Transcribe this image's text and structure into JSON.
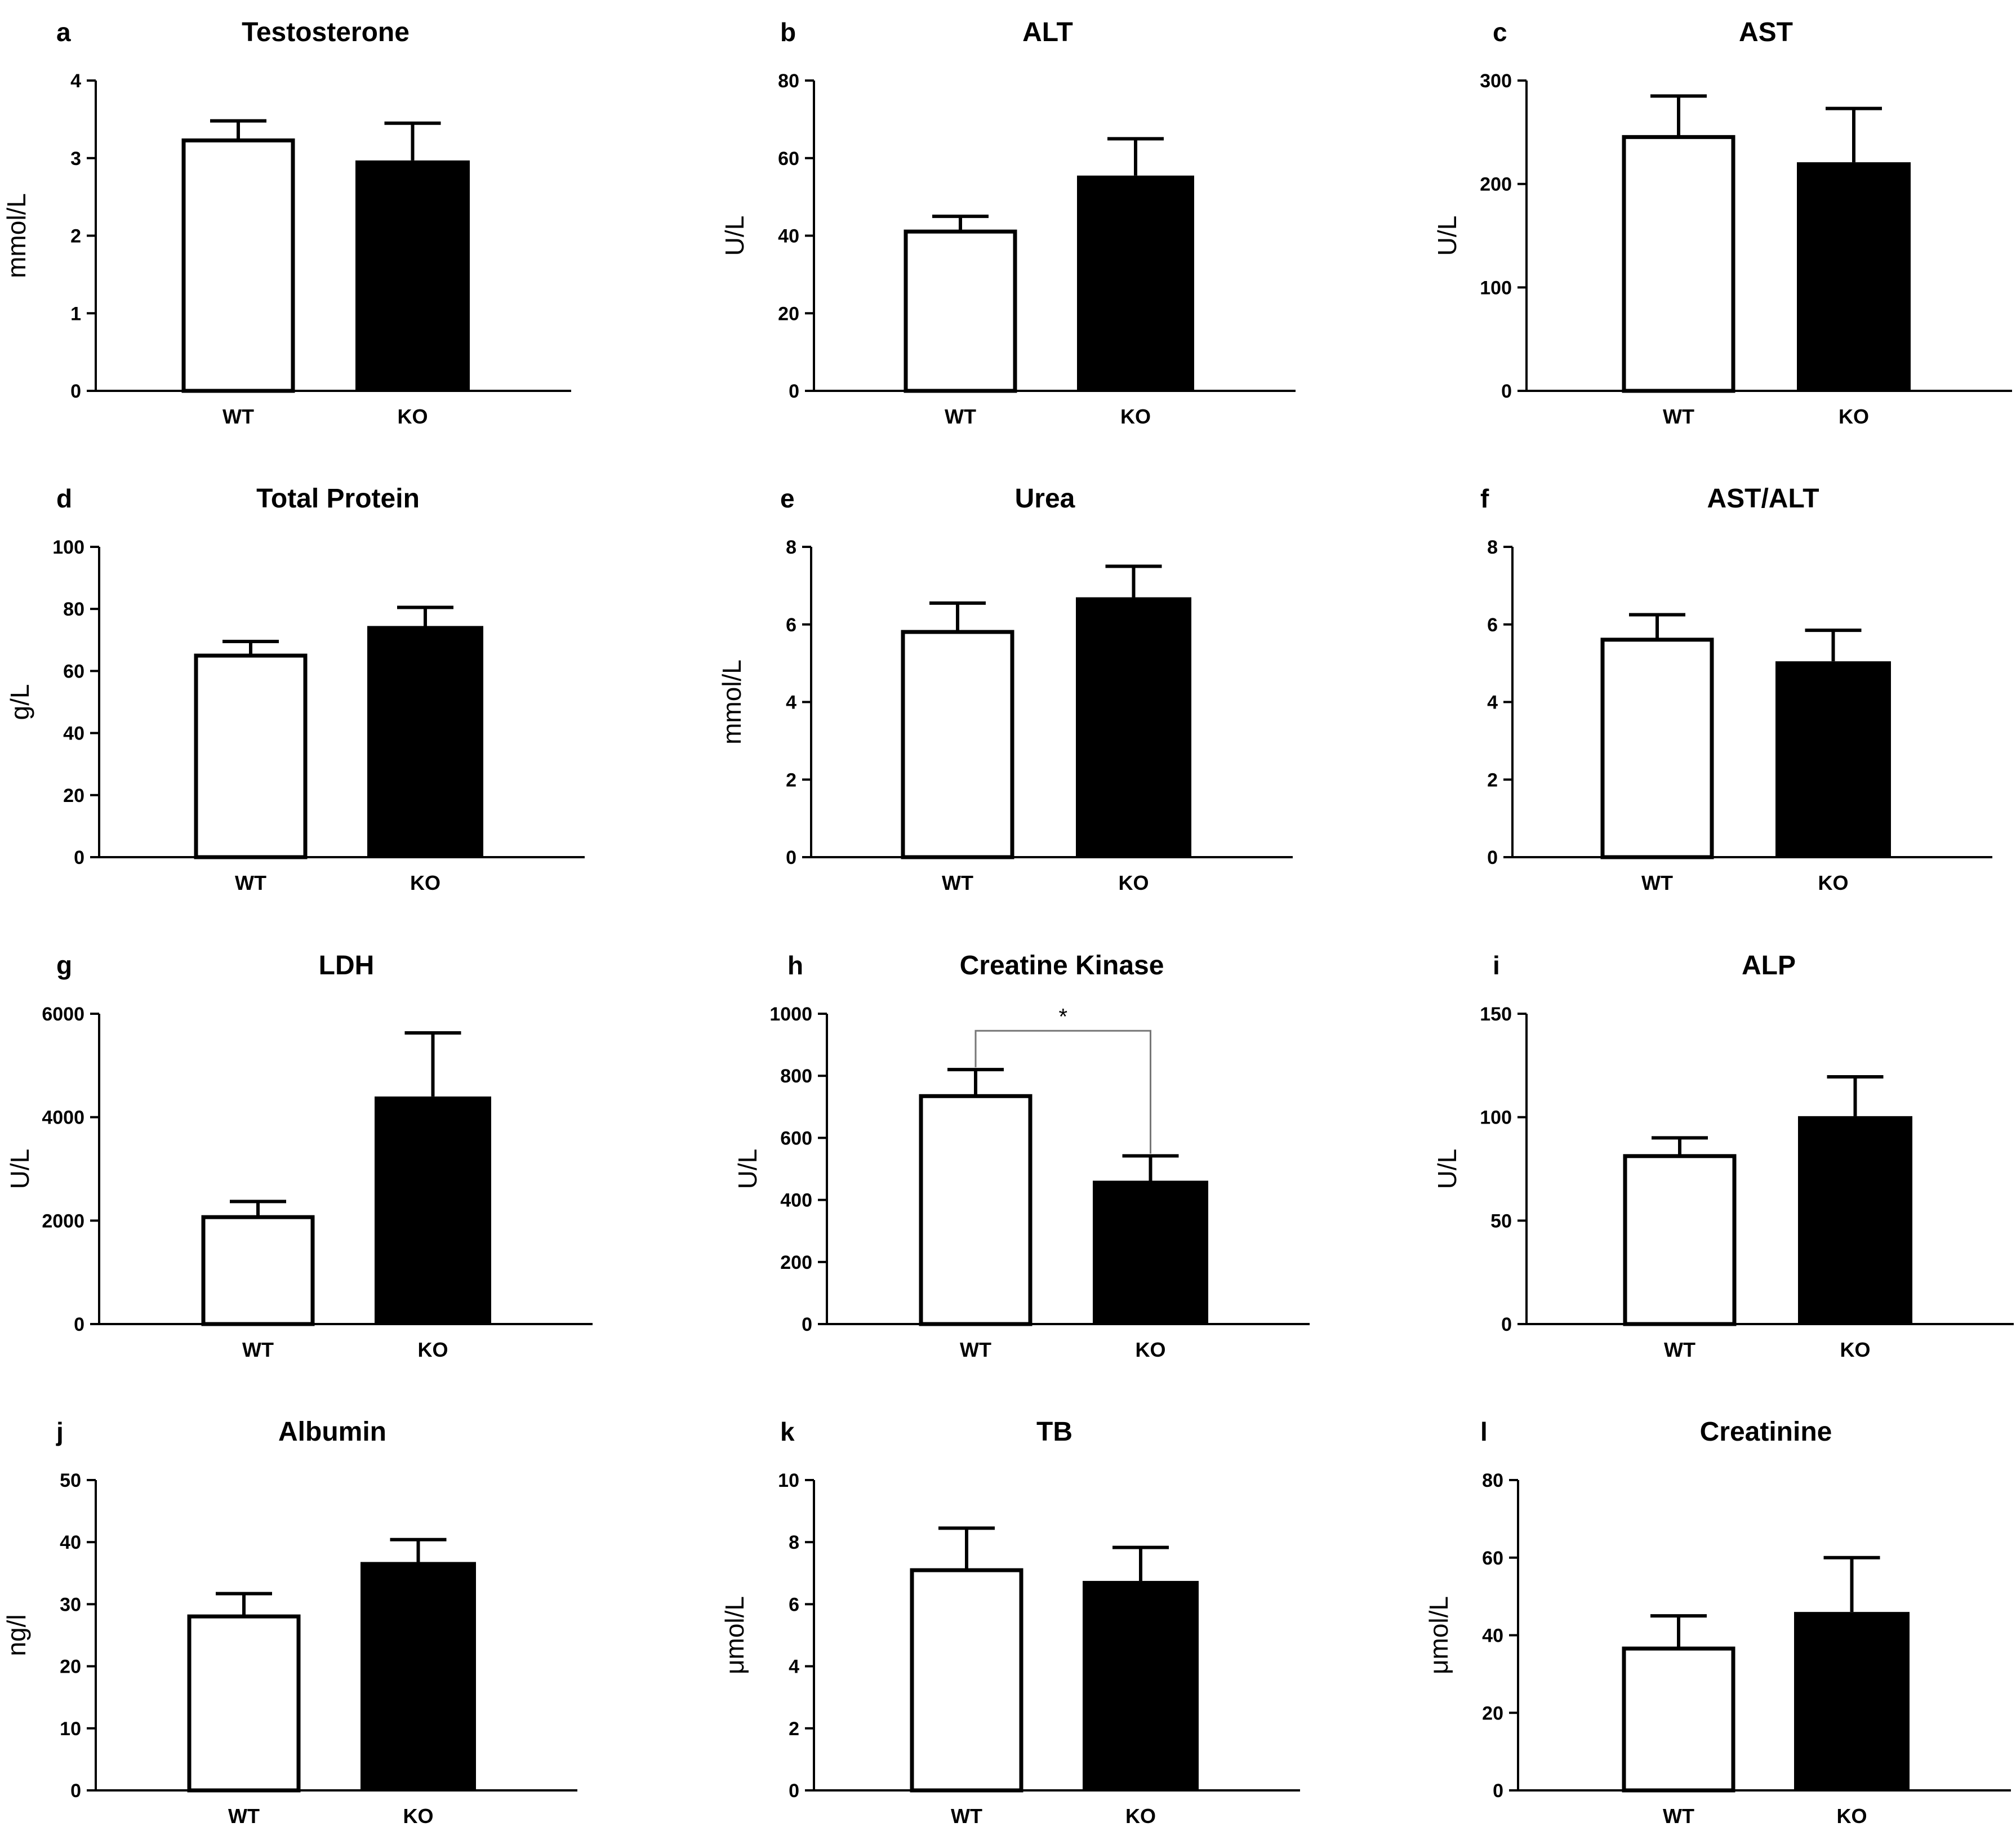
{
  "chart_data": [
    {
      "letter": "a",
      "type": "bar",
      "title": "Testosterone",
      "ylabel": "mmol/L",
      "ylim": [
        0,
        4
      ],
      "ticks": [
        0,
        1,
        2,
        3,
        4
      ],
      "categories": [
        "WT",
        "KO"
      ],
      "values": [
        3.25,
        2.97
      ],
      "errors": [
        0.23,
        0.48
      ],
      "fills": [
        "#ffffff",
        "#000000"
      ]
    },
    {
      "letter": "b",
      "type": "bar",
      "title": "ALT",
      "ylabel": "U/L",
      "ylim": [
        0,
        80
      ],
      "ticks": [
        0,
        20,
        40,
        60,
        80
      ],
      "categories": [
        "WT",
        "KO"
      ],
      "values": [
        41.5,
        55.5
      ],
      "errors": [
        3.5,
        9.5
      ],
      "fills": [
        "#ffffff",
        "#000000"
      ]
    },
    {
      "letter": "c",
      "type": "bar",
      "title": "AST",
      "ylabel": "U/L",
      "ylim": [
        0,
        300
      ],
      "ticks": [
        0,
        100,
        200,
        300
      ],
      "categories": [
        "WT",
        "KO"
      ],
      "values": [
        247,
        221
      ],
      "errors": [
        38,
        52
      ],
      "fills": [
        "#ffffff",
        "#000000"
      ]
    },
    {
      "letter": "d",
      "type": "bar",
      "title": "Total Protein",
      "ylabel": "g/L",
      "ylim": [
        0,
        100
      ],
      "ticks": [
        0,
        20,
        40,
        60,
        80,
        100
      ],
      "categories": [
        "WT",
        "KO"
      ],
      "values": [
        65.5,
        74.5
      ],
      "errors": [
        4,
        6
      ],
      "fills": [
        "#ffffff",
        "#000000"
      ]
    },
    {
      "letter": "e",
      "type": "bar",
      "title": "Urea",
      "ylabel": "mmol/L",
      "ylim": [
        0,
        8
      ],
      "ticks": [
        0,
        2,
        4,
        6,
        8
      ],
      "categories": [
        "WT",
        "KO"
      ],
      "values": [
        5.85,
        6.7
      ],
      "errors": [
        0.7,
        0.8
      ],
      "fills": [
        "#ffffff",
        "#000000"
      ]
    },
    {
      "letter": "f",
      "type": "bar",
      "title": "AST/ALT",
      "ylabel": "",
      "ylim": [
        0,
        8
      ],
      "ticks": [
        0,
        2,
        4,
        6,
        8
      ],
      "categories": [
        "WT",
        "KO"
      ],
      "values": [
        5.65,
        5.05
      ],
      "errors": [
        0.6,
        0.8
      ],
      "fills": [
        "#ffffff",
        "#000000"
      ]
    },
    {
      "letter": "g",
      "type": "bar",
      "title": "LDH",
      "ylabel": "U/L",
      "ylim": [
        0,
        6000
      ],
      "ticks": [
        0,
        2000,
        4000,
        6000
      ],
      "categories": [
        "WT",
        "KO"
      ],
      "values": [
        2100,
        4400
      ],
      "errors": [
        270,
        1230
      ],
      "fills": [
        "#ffffff",
        "#000000"
      ]
    },
    {
      "letter": "h",
      "type": "bar",
      "title": "Creatine Kinase",
      "ylabel": "U/L",
      "ylim": [
        0,
        1000
      ],
      "ticks": [
        0,
        200,
        400,
        600,
        800,
        1000
      ],
      "categories": [
        "WT",
        "KO"
      ],
      "values": [
        740,
        462
      ],
      "errors": [
        80,
        80
      ],
      "fills": [
        "#ffffff",
        "#000000"
      ],
      "significance": {
        "label": "*",
        "bracket_y": 945
      }
    },
    {
      "letter": "i",
      "type": "bar",
      "title": "ALP",
      "ylabel": "U/L",
      "ylim": [
        0,
        150
      ],
      "ticks": [
        0,
        50,
        100,
        150
      ],
      "categories": [
        "WT",
        "KO"
      ],
      "values": [
        82,
        100.5
      ],
      "errors": [
        8,
        19
      ],
      "fills": [
        "#ffffff",
        "#000000"
      ]
    },
    {
      "letter": "j",
      "type": "bar",
      "title": "Albumin",
      "ylabel": "ng/l",
      "ylim": [
        0,
        50
      ],
      "ticks": [
        0,
        10,
        20,
        30,
        40,
        50
      ],
      "categories": [
        "WT",
        "KO"
      ],
      "values": [
        28.3,
        36.8
      ],
      "errors": [
        3.4,
        3.6
      ],
      "fills": [
        "#ffffff",
        "#000000"
      ]
    },
    {
      "letter": "k",
      "type": "bar",
      "title": "TB",
      "ylabel": "μmol/L",
      "ylim": [
        0,
        10
      ],
      "ticks": [
        0,
        2,
        4,
        6,
        8,
        10
      ],
      "categories": [
        "WT",
        "KO"
      ],
      "values": [
        7.15,
        6.75
      ],
      "errors": [
        1.3,
        1.08
      ],
      "fills": [
        "#ffffff",
        "#000000"
      ]
    },
    {
      "letter": "l",
      "type": "bar",
      "title": "Creatinine",
      "ylabel": "μmol/L",
      "ylim": [
        0,
        80
      ],
      "ticks": [
        0,
        20,
        40,
        60,
        80
      ],
      "categories": [
        "WT",
        "KO"
      ],
      "values": [
        37,
        46
      ],
      "errors": [
        8,
        14
      ],
      "fills": [
        "#ffffff",
        "#000000"
      ]
    }
  ]
}
